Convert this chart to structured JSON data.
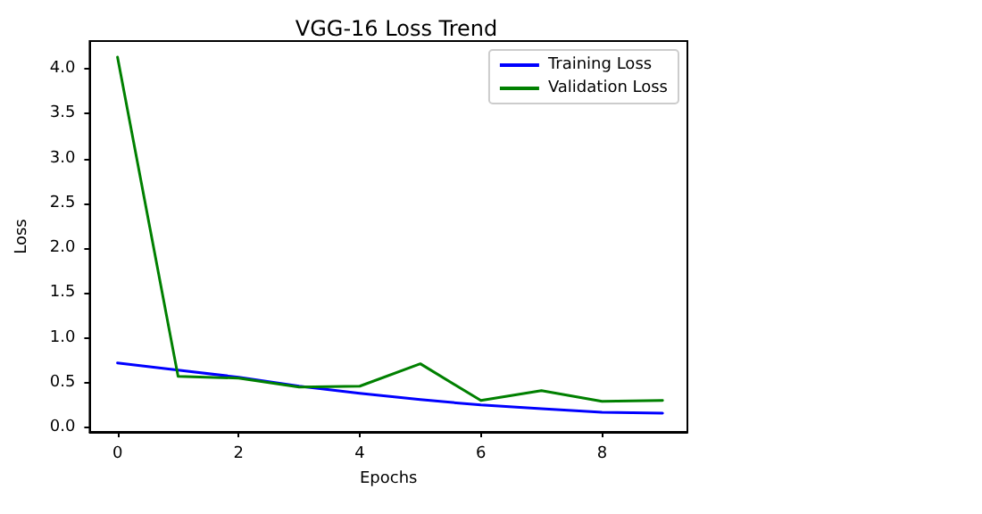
{
  "chart_data": {
    "type": "line",
    "title": "VGG-16 Loss Trend",
    "xlabel": "Epochs",
    "ylabel": "Loss",
    "x": [
      0,
      1,
      2,
      3,
      4,
      5,
      6,
      7,
      8,
      9
    ],
    "series": [
      {
        "name": "Training Loss",
        "color": "#0000ff",
        "values": [
          0.72,
          0.64,
          0.56,
          0.46,
          0.38,
          0.31,
          0.25,
          0.21,
          0.17,
          0.16
        ]
      },
      {
        "name": "Validation Loss",
        "color": "#008000",
        "values": [
          4.13,
          0.57,
          0.55,
          0.45,
          0.46,
          0.71,
          0.3,
          0.41,
          0.29,
          0.3
        ]
      }
    ],
    "xlim": [
      -0.46,
      9.41
    ],
    "xticks": [
      0,
      2,
      4,
      6,
      8
    ],
    "ylim": [
      -0.05,
      4.31
    ],
    "yticks": [
      {
        "value": 0,
        "label": "0.0"
      },
      0.5,
      {
        "value": 1,
        "label": "1.0"
      },
      1.5,
      {
        "value": 2,
        "label": "2.0"
      },
      2.5,
      {
        "value": 3,
        "label": "3.0"
      },
      3.5,
      {
        "value": 4,
        "label": "4.0"
      }
    ],
    "legend": "top right",
    "marker": "none",
    "line_style": "solid"
  }
}
